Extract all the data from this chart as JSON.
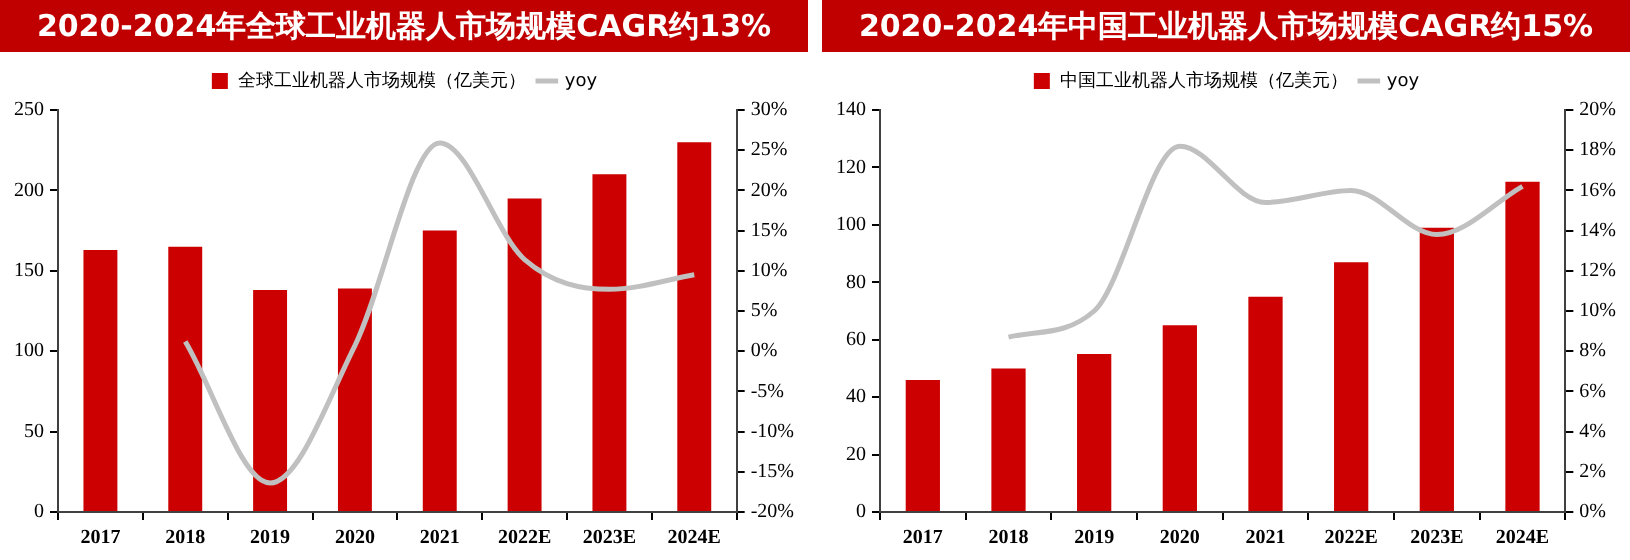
{
  "chart_data": [
    {
      "type": "bar",
      "title": "2020-2024年全球工业机器人市场规模CAGR约13%",
      "categories": [
        "2017",
        "2018",
        "2019",
        "2020",
        "2021",
        "2022E",
        "2023E",
        "2024E"
      ],
      "series": [
        {
          "name": "全球工业机器人市场规模（亿美元）",
          "color": "#cc0000",
          "values": [
            163,
            165,
            138,
            139,
            175,
            195,
            210,
            230
          ]
        },
        {
          "name": "yoy",
          "type": "line",
          "axis": "y2",
          "color": "#c0c0c0",
          "values": [
            null,
            1.2,
            -16.4,
            0.7,
            25.9,
            11.4,
            7.7,
            9.5
          ]
        }
      ],
      "ylim": [
        0,
        250
      ],
      "yticks": [
        0,
        50,
        100,
        150,
        200,
        250
      ],
      "y2lim": [
        -20,
        30
      ],
      "y2ticks": [
        {
          "value": -20,
          "label": "-20%"
        },
        {
          "value": -15,
          "label": "-15%"
        },
        {
          "value": -10,
          "label": "-10%"
        },
        {
          "value": -5,
          "label": "-5%"
        },
        {
          "value": 0,
          "label": "0%"
        },
        {
          "value": 5,
          "label": "5%"
        },
        {
          "value": 10,
          "label": "10%"
        },
        {
          "value": 15,
          "label": "15%"
        },
        {
          "value": 20,
          "label": "20%"
        },
        {
          "value": 25,
          "label": "25%"
        },
        {
          "value": 30,
          "label": "30%"
        }
      ],
      "grid": false,
      "legend": "top"
    },
    {
      "type": "bar",
      "title": "2020-2024年中国工业机器人市场规模CAGR约15%",
      "categories": [
        "2017",
        "2018",
        "2019",
        "2020",
        "2021",
        "2022E",
        "2023E",
        "2024E"
      ],
      "series": [
        {
          "name": "中国工业机器人市场规模（亿美元）",
          "color": "#cc0000",
          "values": [
            46,
            50,
            55,
            65,
            75,
            87,
            99,
            115
          ]
        },
        {
          "name": "yoy",
          "type": "line",
          "axis": "y2",
          "color": "#c0c0c0",
          "values": [
            null,
            8.7,
            10,
            18.2,
            15.4,
            16,
            13.8,
            16.2
          ]
        }
      ],
      "ylim": [
        0,
        140
      ],
      "yticks": [
        0,
        20,
        40,
        60,
        80,
        100,
        120,
        140
      ],
      "y2lim": [
        0,
        20
      ],
      "y2ticks": [
        {
          "value": 0,
          "label": "0%"
        },
        {
          "value": 2,
          "label": "2%"
        },
        {
          "value": 4,
          "label": "4%"
        },
        {
          "value": 6,
          "label": "6%"
        },
        {
          "value": 8,
          "label": "8%"
        },
        {
          "value": 10,
          "label": "10%"
        },
        {
          "value": 12,
          "label": "12%"
        },
        {
          "value": 14,
          "label": "14%"
        },
        {
          "value": 16,
          "label": "16%"
        },
        {
          "value": 18,
          "label": "18%"
        },
        {
          "value": 20,
          "label": "20%"
        }
      ],
      "grid": false,
      "legend": "top"
    }
  ]
}
